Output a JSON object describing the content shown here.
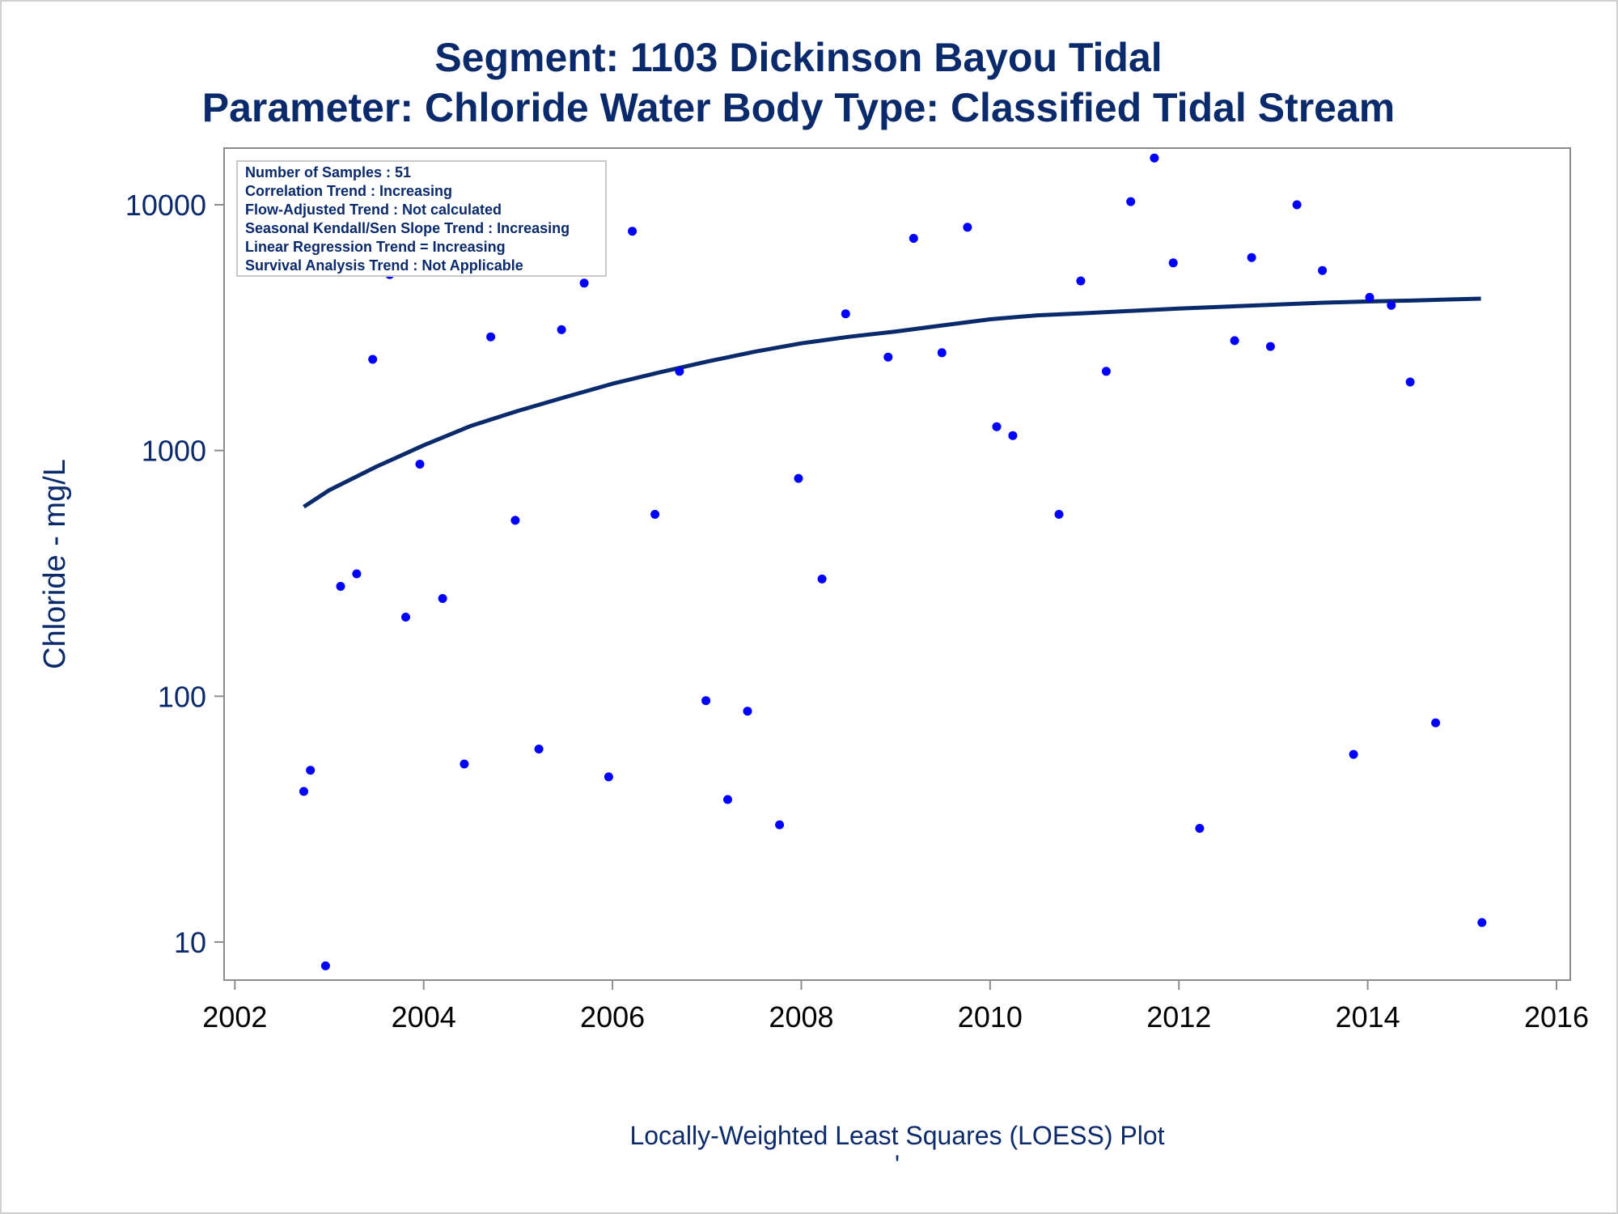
{
  "chart_data": {
    "type": "scatter",
    "title": "Segment: 1103  Dickinson Bayou Tidal",
    "subtitle": "Parameter: Chloride   Water Body Type: Classified Tidal Stream",
    "ylabel": "Chloride - mg/L",
    "footnote": "Locally-Weighted Least Squares (LOESS) Plot",
    "footnote_mark": "'",
    "x_ticks": [
      "2002",
      "2004",
      "2006",
      "2008",
      "2010",
      "2012",
      "2014",
      "2016"
    ],
    "y_ticks": [
      "10",
      "100",
      "1000",
      "10000"
    ],
    "xlim": [
      2002,
      2016
    ],
    "ylim": [
      7,
      17000
    ],
    "y_scale": "log",
    "grid": false,
    "inset": {
      "placement": "top-left",
      "lines": [
        "Number of Samples : 51",
        "Correlation Trend : Increasing",
        "Flow-Adjusted Trend : Not calculated",
        "Seasonal Kendall/Sen Slope Trend : Increasing",
        "Linear Regression Trend = Increasing",
        "Survival Analysis Trend : Not Applicable"
      ]
    },
    "series": [
      {
        "type": "scatter",
        "color": "#0000ff",
        "points": [
          [
            2002.73,
            41
          ],
          [
            2002.8,
            50
          ],
          [
            2002.96,
            8
          ],
          [
            2003.12,
            280
          ],
          [
            2003.29,
            315
          ],
          [
            2003.46,
            2350
          ],
          [
            2003.64,
            5200
          ],
          [
            2003.81,
            210
          ],
          [
            2003.96,
            880
          ],
          [
            2004.2,
            250
          ],
          [
            2004.43,
            53
          ],
          [
            2004.71,
            2900
          ],
          [
            2004.97,
            520
          ],
          [
            2005.22,
            61
          ],
          [
            2005.46,
            3100
          ],
          [
            2005.7,
            4800
          ],
          [
            2005.96,
            47
          ],
          [
            2006.21,
            7800
          ],
          [
            2006.45,
            550
          ],
          [
            2006.71,
            2100
          ],
          [
            2006.99,
            96
          ],
          [
            2007.22,
            38
          ],
          [
            2007.43,
            87
          ],
          [
            2007.77,
            30
          ],
          [
            2007.97,
            770
          ],
          [
            2008.22,
            300
          ],
          [
            2008.47,
            3600
          ],
          [
            2008.92,
            2400
          ],
          [
            2009.19,
            7300
          ],
          [
            2009.49,
            2500
          ],
          [
            2009.76,
            8100
          ],
          [
            2010.07,
            1250
          ],
          [
            2010.24,
            1150
          ],
          [
            2010.73,
            550
          ],
          [
            2010.96,
            4900
          ],
          [
            2011.23,
            2100
          ],
          [
            2011.49,
            10300
          ],
          [
            2011.74,
            15500
          ],
          [
            2011.94,
            5800
          ],
          [
            2012.22,
            29
          ],
          [
            2012.59,
            2800
          ],
          [
            2012.77,
            6100
          ],
          [
            2012.97,
            2650
          ],
          [
            2013.25,
            10000
          ],
          [
            2013.52,
            5400
          ],
          [
            2013.85,
            58
          ],
          [
            2014.02,
            4200
          ],
          [
            2014.25,
            3900
          ],
          [
            2014.45,
            1900
          ],
          [
            2014.72,
            78
          ],
          [
            2015.21,
            12
          ]
        ]
      },
      {
        "type": "line",
        "color": "#0a2a6b",
        "points": [
          [
            2002.73,
            590
          ],
          [
            2003.0,
            690
          ],
          [
            2003.5,
            860
          ],
          [
            2004.0,
            1050
          ],
          [
            2004.5,
            1260
          ],
          [
            2005.0,
            1450
          ],
          [
            2005.5,
            1650
          ],
          [
            2006.0,
            1870
          ],
          [
            2006.5,
            2080
          ],
          [
            2007.0,
            2300
          ],
          [
            2007.5,
            2520
          ],
          [
            2008.0,
            2730
          ],
          [
            2008.5,
            2900
          ],
          [
            2009.0,
            3050
          ],
          [
            2009.5,
            3230
          ],
          [
            2010.0,
            3420
          ],
          [
            2010.5,
            3550
          ],
          [
            2011.0,
            3620
          ],
          [
            2011.5,
            3700
          ],
          [
            2012.0,
            3780
          ],
          [
            2012.5,
            3850
          ],
          [
            2013.0,
            3920
          ],
          [
            2013.5,
            3990
          ],
          [
            2014.0,
            4040
          ],
          [
            2014.5,
            4080
          ],
          [
            2015.2,
            4150
          ]
        ]
      }
    ]
  }
}
